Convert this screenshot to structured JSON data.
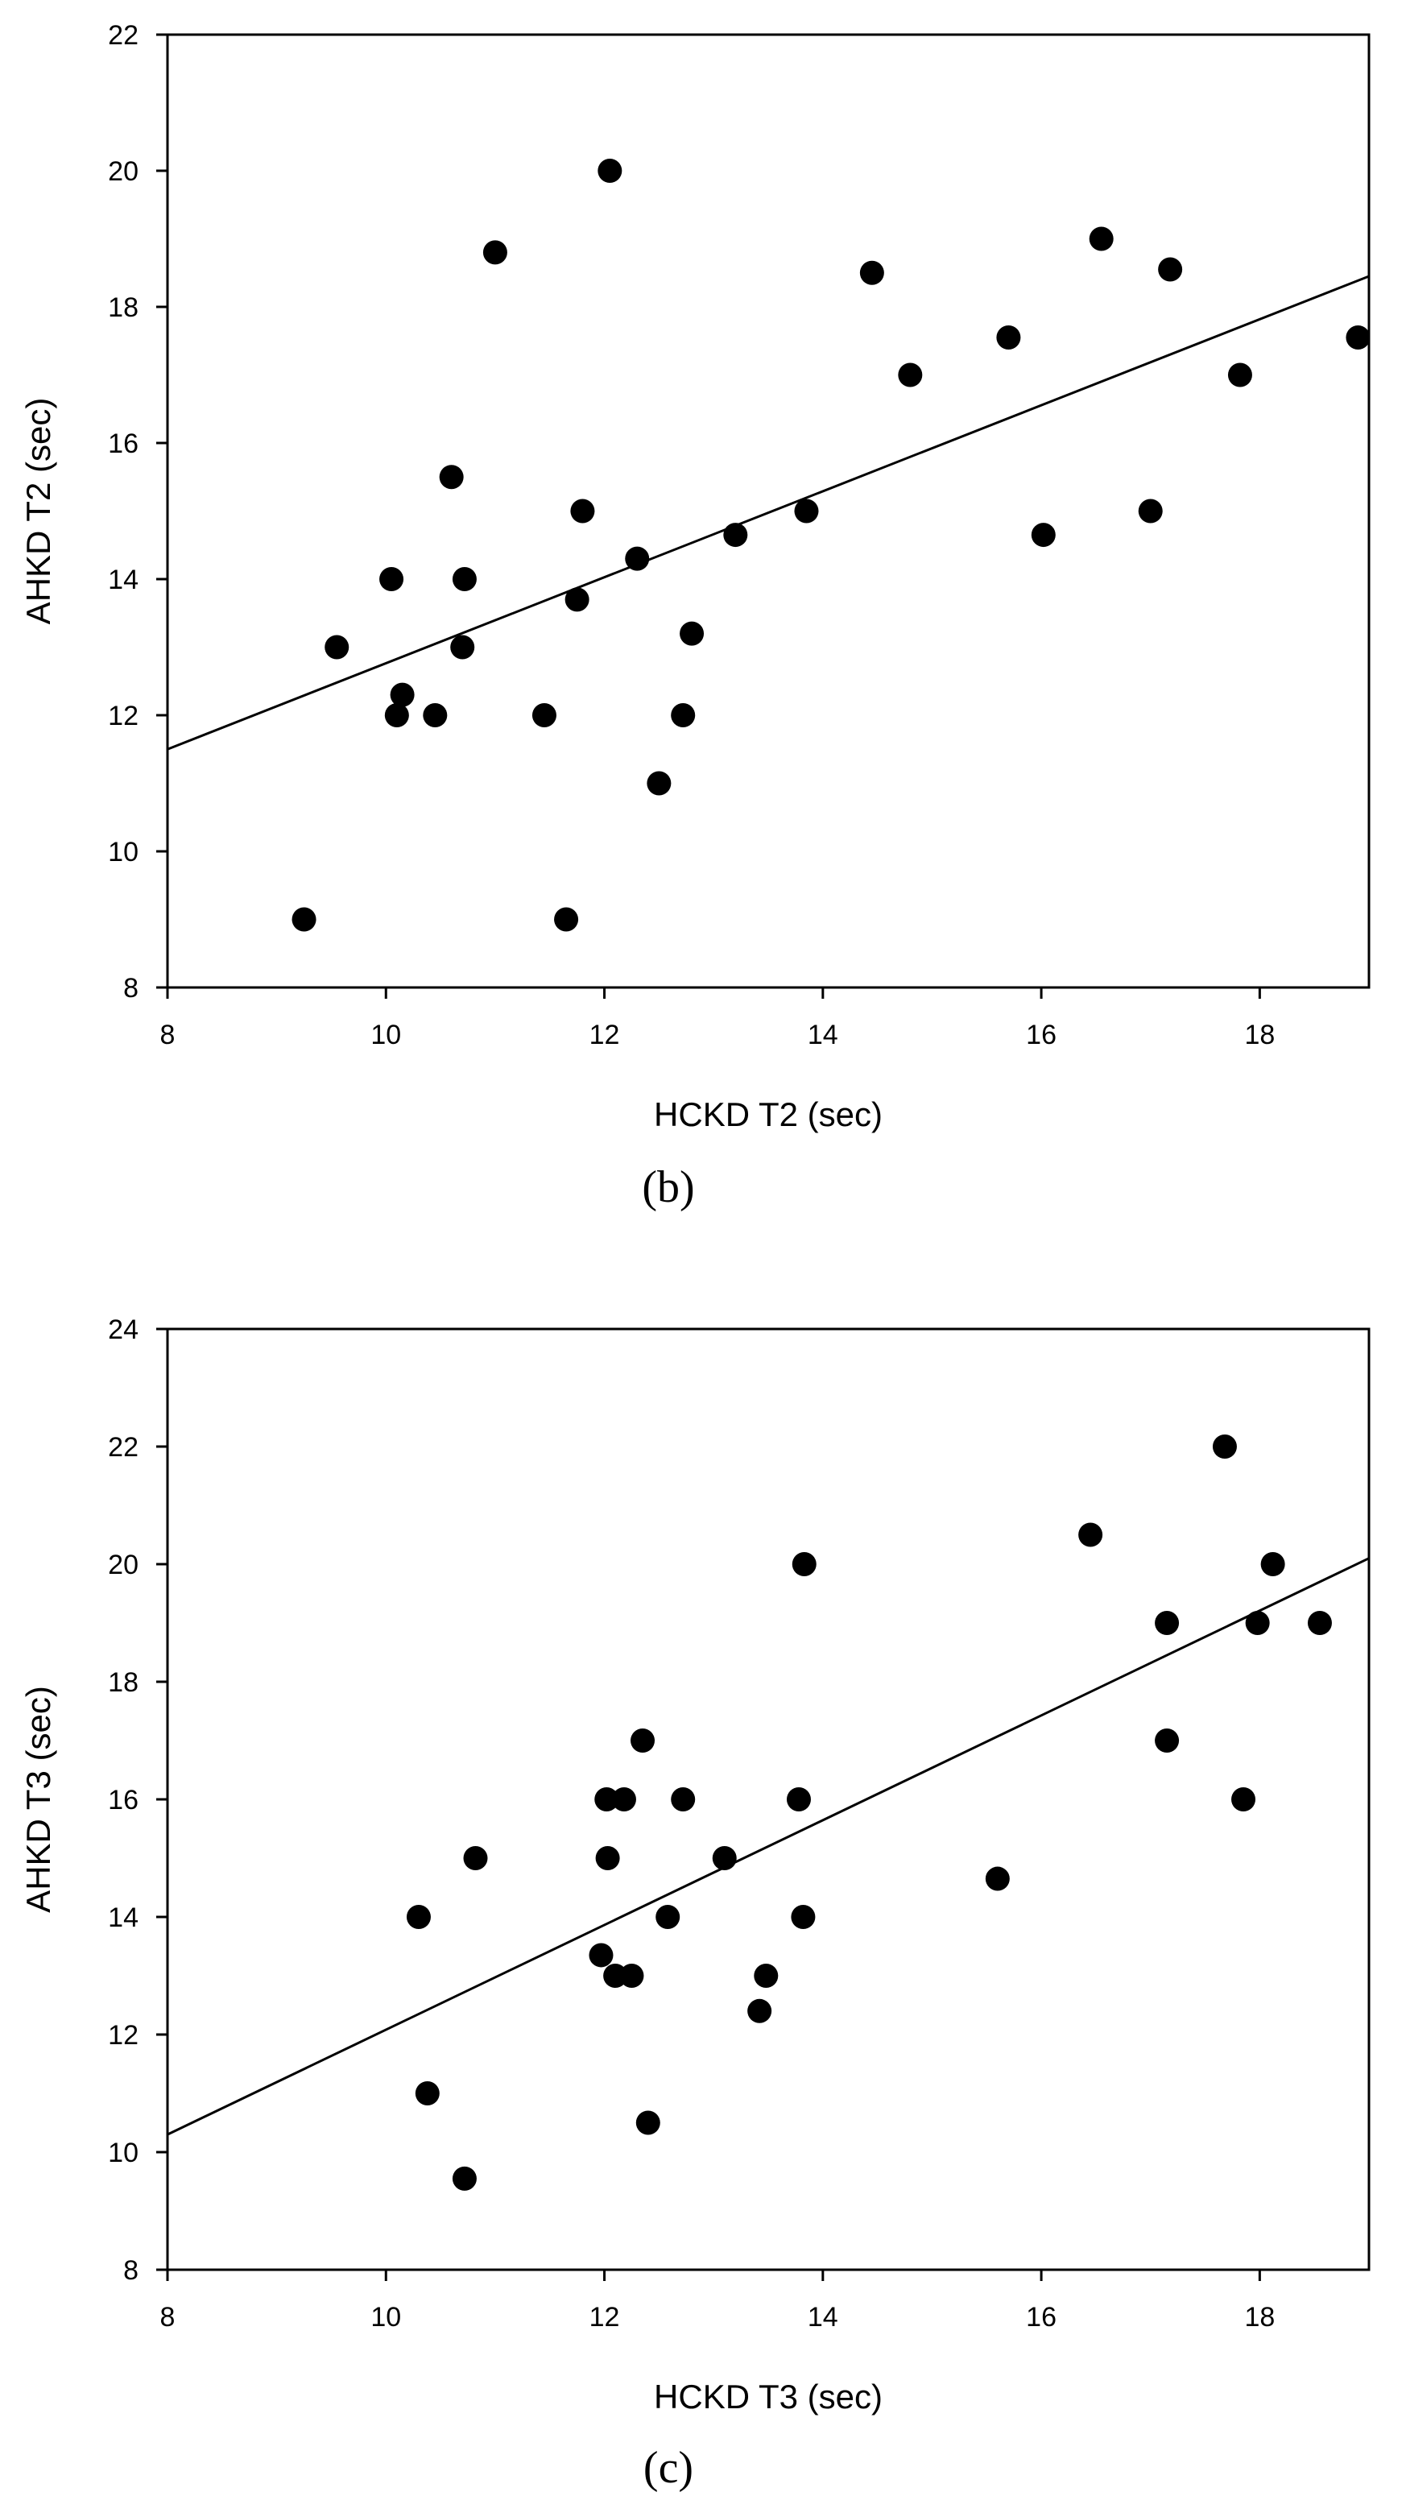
{
  "chart_data": [
    {
      "type": "scatter",
      "panel_label": "(b)",
      "xlabel": "HCKD T2 (sec)",
      "ylabel": "AHKD T2 (sec)",
      "xlim": [
        8,
        19
      ],
      "ylim": [
        8,
        22
      ],
      "xticks": [
        8,
        10,
        12,
        14,
        16,
        18
      ],
      "yticks": [
        8,
        10,
        12,
        14,
        16,
        18,
        20,
        22
      ],
      "points": [
        [
          9.25,
          9
        ],
        [
          9.55,
          13
        ],
        [
          10.05,
          14
        ],
        [
          10.1,
          12
        ],
        [
          10.15,
          12.3
        ],
        [
          10.45,
          12
        ],
        [
          10.6,
          15.5
        ],
        [
          10.7,
          13
        ],
        [
          10.72,
          14
        ],
        [
          11.0,
          18.8
        ],
        [
          11.45,
          12
        ],
        [
          11.65,
          9
        ],
        [
          11.75,
          13.7
        ],
        [
          11.8,
          15
        ],
        [
          12.05,
          20
        ],
        [
          12.3,
          14.3
        ],
        [
          12.5,
          11
        ],
        [
          12.72,
          12
        ],
        [
          12.8,
          13.2
        ],
        [
          13.2,
          14.65
        ],
        [
          13.85,
          15
        ],
        [
          14.45,
          18.5
        ],
        [
          14.8,
          17
        ],
        [
          15.7,
          17.55
        ],
        [
          16.02,
          14.65
        ],
        [
          16.55,
          19
        ],
        [
          17.0,
          15
        ],
        [
          17.18,
          18.55
        ],
        [
          17.82,
          17
        ],
        [
          18.9,
          17.55
        ]
      ],
      "regression": {
        "x": [
          8,
          19
        ],
        "y": [
          11.5,
          18.45
        ]
      }
    },
    {
      "type": "scatter",
      "panel_label": "(c)",
      "xlabel": "HCKD T3 (sec)",
      "ylabel": "AHKD T3 (sec)",
      "xlim": [
        8,
        19
      ],
      "ylim": [
        8,
        24
      ],
      "xticks": [
        8,
        10,
        12,
        14,
        16,
        18
      ],
      "yticks": [
        8,
        10,
        12,
        14,
        16,
        18,
        20,
        22,
        24
      ],
      "points": [
        [
          10.3,
          14
        ],
        [
          10.38,
          11
        ],
        [
          10.72,
          9.55
        ],
        [
          10.82,
          15
        ],
        [
          11.97,
          13.35
        ],
        [
          12.02,
          16
        ],
        [
          12.03,
          15
        ],
        [
          12.1,
          13
        ],
        [
          12.18,
          16
        ],
        [
          12.25,
          13
        ],
        [
          12.35,
          17
        ],
        [
          12.4,
          10.5
        ],
        [
          12.58,
          14
        ],
        [
          12.72,
          16
        ],
        [
          13.1,
          15
        ],
        [
          13.42,
          12.4
        ],
        [
          13.48,
          13
        ],
        [
          13.78,
          16
        ],
        [
          13.82,
          14
        ],
        [
          13.83,
          20
        ],
        [
          15.6,
          14.65
        ],
        [
          16.45,
          20.5
        ],
        [
          17.15,
          19
        ],
        [
          17.15,
          17
        ],
        [
          17.68,
          22
        ],
        [
          17.85,
          16
        ],
        [
          17.98,
          19
        ],
        [
          18.12,
          20
        ],
        [
          18.55,
          19
        ]
      ],
      "regression": {
        "x": [
          8,
          19
        ],
        "y": [
          10.3,
          20.1
        ]
      }
    }
  ],
  "style": {
    "point_color": "#000000",
    "line_color": "#000000",
    "axis_color": "#000000"
  }
}
